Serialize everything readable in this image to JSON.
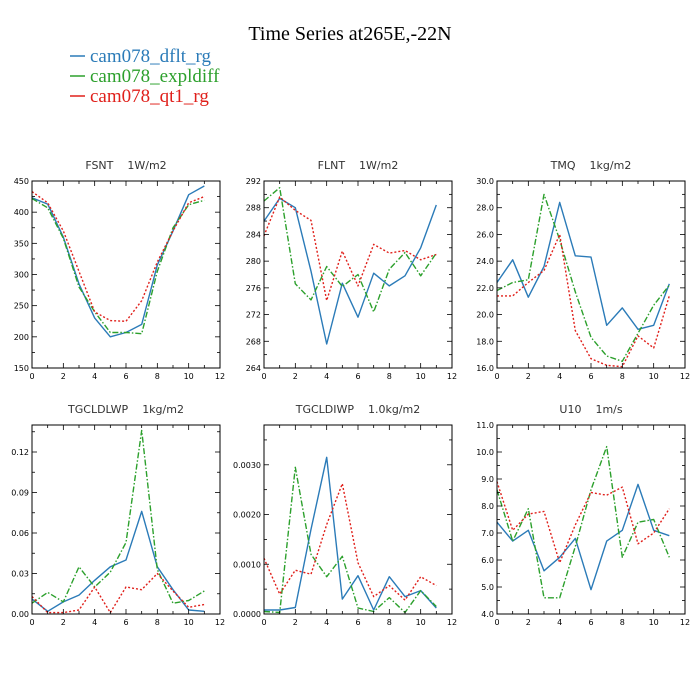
{
  "title": "Time Series at265E,-22N",
  "legend": [
    {
      "label": "cam078_dflt_rg",
      "color": "#2b7bb8",
      "dash": "solid"
    },
    {
      "label": "cam078_expldiff",
      "color": "#2ca02c",
      "dash": "dashdot"
    },
    {
      "label": "cam078_qt1_rg",
      "color": "#e0201b",
      "dash": "dotted"
    }
  ],
  "chart_data": [
    {
      "type": "line",
      "title": "FSNT",
      "units": "1W/m2",
      "x": [
        0,
        1,
        2,
        3,
        4,
        5,
        6,
        7,
        8,
        9,
        10,
        11
      ],
      "xlim": [
        0,
        12
      ],
      "xticks": [
        0,
        2,
        4,
        6,
        8,
        10,
        12
      ],
      "xtick_labels": [
        "0",
        "2",
        "4",
        "6",
        "8",
        "10",
        "12"
      ],
      "ylim": [
        150,
        450
      ],
      "yticks": [
        150,
        200,
        250,
        300,
        350,
        400,
        450
      ],
      "ytick_labels": [
        "150",
        "200",
        "250",
        "300",
        "350",
        "400",
        "450"
      ],
      "series": [
        {
          "name": "cam078_dflt_rg",
          "values": [
            423,
            413,
            360,
            285,
            230,
            200,
            207,
            220,
            315,
            370,
            428,
            442
          ]
        },
        {
          "name": "cam078_expldiff",
          "values": [
            422,
            407,
            358,
            280,
            240,
            207,
            207,
            205,
            305,
            375,
            412,
            419
          ]
        },
        {
          "name": "cam078_qt1_rg",
          "values": [
            433,
            415,
            370,
            305,
            240,
            226,
            225,
            258,
            320,
            370,
            415,
            425
          ]
        }
      ]
    },
    {
      "type": "line",
      "title": "FLNT",
      "units": "1W/m2",
      "x": [
        0,
        1,
        2,
        3,
        4,
        5,
        6,
        7,
        8,
        9,
        10,
        11
      ],
      "xlim": [
        0,
        12
      ],
      "xticks": [
        0,
        2,
        4,
        6,
        8,
        10,
        12
      ],
      "xtick_labels": [
        "0",
        "2",
        "4",
        "6",
        "8",
        "10",
        "12"
      ],
      "ylim": [
        264,
        292
      ],
      "yticks": [
        264,
        268,
        272,
        276,
        280,
        284,
        288,
        292
      ],
      "ytick_labels": [
        "264",
        "268",
        "272",
        "276",
        "280",
        "284",
        "288",
        "292"
      ],
      "series": [
        {
          "name": "cam078_dflt_rg",
          "values": [
            286,
            289.4,
            288,
            278.5,
            267.6,
            276.7,
            271.6,
            278.2,
            276.3,
            277.8,
            282,
            288.4
          ]
        },
        {
          "name": "cam078_expldiff",
          "values": [
            289,
            291,
            276.6,
            274.2,
            279.2,
            276.2,
            278,
            272.4,
            278.8,
            281.3,
            277.8,
            281.2
          ]
        },
        {
          "name": "cam078_qt1_rg",
          "values": [
            283.8,
            289.6,
            287.6,
            286.1,
            274.1,
            281.5,
            276.3,
            282.5,
            281.2,
            281.6,
            280.2,
            281
          ]
        }
      ]
    },
    {
      "type": "line",
      "title": "TMQ",
      "units": "1kg/m2",
      "x": [
        0,
        1,
        2,
        3,
        4,
        5,
        6,
        7,
        8,
        9,
        10,
        11
      ],
      "xlim": [
        0,
        12
      ],
      "xticks": [
        0,
        2,
        4,
        6,
        8,
        10,
        12
      ],
      "xtick_labels": [
        "0",
        "2",
        "4",
        "6",
        "8",
        "10",
        "12"
      ],
      "ylim": [
        16,
        30
      ],
      "yticks": [
        16,
        18,
        20,
        22,
        24,
        26,
        28,
        30
      ],
      "ytick_labels": [
        "16.0",
        "18.0",
        "20.0",
        "22.0",
        "24.0",
        "26.0",
        "28.0",
        "30.0"
      ],
      "series": [
        {
          "name": "cam078_dflt_rg",
          "values": [
            22.4,
            24.1,
            21.3,
            23.6,
            28.4,
            24.4,
            24.3,
            19.2,
            20.5,
            18.9,
            19.2,
            22.3
          ]
        },
        {
          "name": "cam078_expldiff",
          "values": [
            21.8,
            22.4,
            22.6,
            29,
            25.6,
            21.7,
            18.3,
            16.9,
            16.5,
            18.6,
            20.7,
            22.2
          ]
        },
        {
          "name": "cam078_qt1_rg",
          "values": [
            21.4,
            21.4,
            22.4,
            23.3,
            26,
            18.8,
            16.7,
            16.2,
            16.1,
            18.4,
            17.5,
            21.4
          ]
        }
      ]
    },
    {
      "type": "line",
      "title": "TGCLDLWP",
      "units": "1kg/m2",
      "x": [
        0,
        1,
        2,
        3,
        4,
        5,
        6,
        7,
        8,
        9,
        10,
        11
      ],
      "xlim": [
        0,
        12
      ],
      "xticks": [
        0,
        2,
        4,
        6,
        8,
        10,
        12
      ],
      "xtick_labels": [
        "0",
        "2",
        "4",
        "6",
        "8",
        "10",
        "12"
      ],
      "ylim": [
        0,
        0.14
      ],
      "yticks": [
        0,
        0.03,
        0.06,
        0.09,
        0.12
      ],
      "ytick_labels": [
        "0.00",
        "0.03",
        "0.06",
        "0.09",
        "0.12"
      ],
      "series": [
        {
          "name": "cam078_dflt_rg",
          "values": [
            0.011,
            0.002,
            0.009,
            0.014,
            0.025,
            0.035,
            0.04,
            0.076,
            0.035,
            0.018,
            0.003,
            0.002
          ]
        },
        {
          "name": "cam078_expldiff",
          "values": [
            0.008,
            0.016,
            0.009,
            0.035,
            0.02,
            0.031,
            0.053,
            0.136,
            0.033,
            0.008,
            0.01,
            0.017
          ]
        },
        {
          "name": "cam078_qt1_rg",
          "values": [
            0.013,
            0.001,
            0.001,
            0.003,
            0.02,
            0.001,
            0.02,
            0.018,
            0.03,
            0.017,
            0.005,
            0.007
          ]
        }
      ]
    },
    {
      "type": "line",
      "title": "TGCLDIWP",
      "units": "1.0kg/m2",
      "x": [
        0,
        1,
        2,
        3,
        4,
        5,
        6,
        7,
        8,
        9,
        10,
        11
      ],
      "xlim": [
        0,
        12
      ],
      "xticks": [
        0,
        2,
        4,
        6,
        8,
        10,
        12
      ],
      "xtick_labels": [
        "0",
        "2",
        "4",
        "6",
        "8",
        "10",
        "12"
      ],
      "ylim": [
        0,
        0.0038
      ],
      "yticks": [
        0,
        0.001,
        0.002,
        0.003
      ],
      "ytick_labels": [
        "0.0000",
        "0.0010",
        "0.0020",
        "0.0030"
      ],
      "series": [
        {
          "name": "cam078_dflt_rg",
          "values": [
            8e-05,
            8e-05,
            0.00013,
            0.0017,
            0.00315,
            0.0003,
            0.00077,
            8e-05,
            0.00075,
            0.00035,
            0.00047,
            0.00012
          ]
        },
        {
          "name": "cam078_expldiff",
          "values": [
            5e-05,
            3e-05,
            0.00295,
            0.0012,
            0.00075,
            0.00116,
            0.00012,
            5e-05,
            0.00033,
            3e-05,
            0.00047,
            0.00015
          ]
        },
        {
          "name": "cam078_qt1_rg",
          "values": [
            0.00112,
            0.0004,
            0.00088,
            0.0008,
            0.0018,
            0.00262,
            0.00103,
            0.00035,
            0.00057,
            0.00028,
            0.00075,
            0.00057
          ]
        }
      ]
    },
    {
      "type": "line",
      "title": "U10",
      "units": "1m/s",
      "x": [
        0,
        1,
        2,
        3,
        4,
        5,
        6,
        7,
        8,
        9,
        10,
        11
      ],
      "xlim": [
        0,
        12
      ],
      "xticks": [
        0,
        2,
        4,
        6,
        8,
        10,
        12
      ],
      "xtick_labels": [
        "0",
        "2",
        "4",
        "6",
        "8",
        "10",
        "12"
      ],
      "ylim": [
        4,
        11
      ],
      "yticks": [
        4,
        5,
        6,
        7,
        8,
        9,
        10,
        11
      ],
      "ytick_labels": [
        "4.0",
        "5.0",
        "6.0",
        "7.0",
        "8.0",
        "9.0",
        "10.0",
        "11.0"
      ],
      "series": [
        {
          "name": "cam078_dflt_rg",
          "values": [
            7.4,
            6.7,
            7.1,
            5.6,
            6.1,
            6.8,
            4.9,
            6.7,
            7.1,
            8.8,
            7.1,
            6.9
          ]
        },
        {
          "name": "cam078_expldiff",
          "values": [
            8.6,
            6.7,
            7.9,
            4.6,
            4.6,
            6.5,
            8.6,
            10.2,
            6.1,
            7.4,
            7.5,
            6.1
          ]
        },
        {
          "name": "cam078_qt1_rg",
          "values": [
            8.9,
            7.1,
            7.7,
            7.8,
            5.9,
            7.3,
            8.5,
            8.4,
            8.7,
            6.6,
            7,
            7.9
          ]
        }
      ]
    }
  ]
}
